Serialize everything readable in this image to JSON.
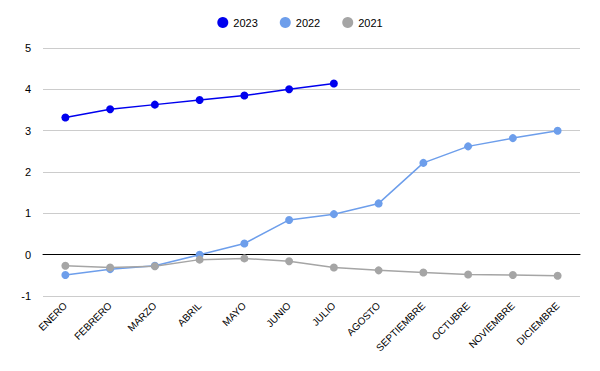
{
  "chart_data": {
    "type": "line",
    "categories": [
      "ENERO",
      "FEBRERO",
      "MARZO",
      "ABRIL",
      "MAYO",
      "JUNIO",
      "JULIO",
      "AGOSTO",
      "SEPTIEMBRE",
      "OCTUBRE",
      "NOVIEMBRE",
      "DICIEMBRE"
    ],
    "series": [
      {
        "name": "2023",
        "color": "#0000ee",
        "values": [
          3.32,
          3.52,
          3.63,
          3.74,
          3.85,
          4.0,
          4.14,
          null,
          null,
          null,
          null,
          null
        ]
      },
      {
        "name": "2022",
        "color": "#6d9eeb",
        "values": [
          -0.49,
          -0.35,
          -0.27,
          0.0,
          0.27,
          0.84,
          0.98,
          1.24,
          2.22,
          2.62,
          2.82,
          3.0
        ]
      },
      {
        "name": "2021",
        "color": "#a5a5a5",
        "values": [
          -0.27,
          -0.31,
          -0.28,
          -0.12,
          -0.09,
          -0.16,
          -0.31,
          -0.38,
          -0.43,
          -0.48,
          -0.49,
          -0.51
        ]
      }
    ],
    "ylim": [
      -1,
      5
    ],
    "yticks": [
      -1,
      0,
      1,
      2,
      3,
      4,
      5
    ],
    "grid": true,
    "legend": "top",
    "marker": "circle"
  }
}
